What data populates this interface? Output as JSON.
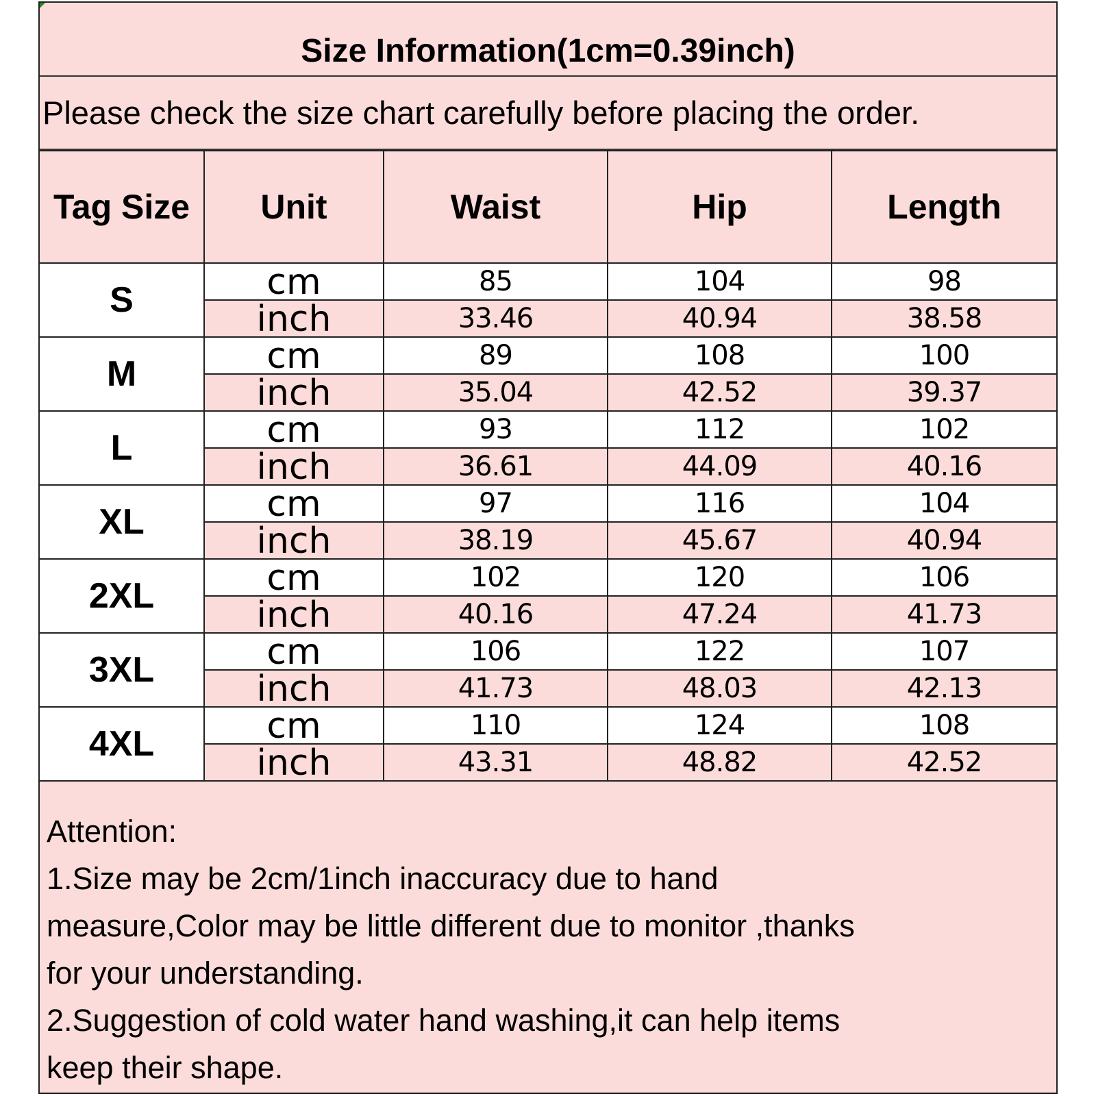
{
  "title": "Size Information(1cm=0.39inch)",
  "subtitle": "Please check the size chart carefully before placing the order.",
  "headers": [
    "Tag Size",
    "Unit",
    "Waist",
    "Hip",
    "Length"
  ],
  "units": {
    "cm": "cm",
    "inch": "inch"
  },
  "rows": [
    {
      "size": "S",
      "cm": [
        "85",
        "104",
        "98"
      ],
      "inch": [
        "33.46",
        "40.94",
        "38.58"
      ]
    },
    {
      "size": "M",
      "cm": [
        "89",
        "108",
        "100"
      ],
      "inch": [
        "35.04",
        "42.52",
        "39.37"
      ]
    },
    {
      "size": "L",
      "cm": [
        "93",
        "112",
        "102"
      ],
      "inch": [
        "36.61",
        "44.09",
        "40.16"
      ]
    },
    {
      "size": "XL",
      "cm": [
        "97",
        "116",
        "104"
      ],
      "inch": [
        "38.19",
        "45.67",
        "40.94"
      ]
    },
    {
      "size": "2XL",
      "cm": [
        "102",
        "120",
        "106"
      ],
      "inch": [
        "40.16",
        "47.24",
        "41.73"
      ]
    },
    {
      "size": "3XL",
      "cm": [
        "106",
        "122",
        "107"
      ],
      "inch": [
        "41.73",
        "48.03",
        "42.13"
      ]
    },
    {
      "size": "4XL",
      "cm": [
        "110",
        "124",
        "108"
      ],
      "inch": [
        "43.31",
        "48.82",
        "42.52"
      ]
    }
  ],
  "attention": {
    "heading": "Attention:",
    "lines": [
      "1.Size may be 2cm/1inch inaccuracy due to hand",
      "measure,Color may be little different due to monitor ,thanks",
      "for your understanding.",
      "2.Suggestion of cold water hand washing,it can help items",
      "keep their shape."
    ]
  },
  "colors": {
    "pink": "#fcdcda",
    "white": "#ffffff",
    "border": "#222222"
  }
}
